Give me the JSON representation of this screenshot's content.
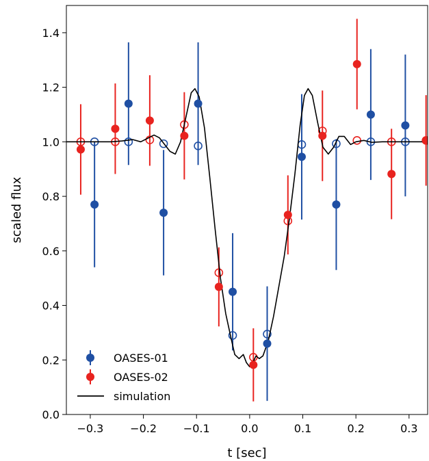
{
  "chart_data": {
    "type": "scatter",
    "xlabel": "t [sec]",
    "ylabel": "scaled flux",
    "xlim": [
      -0.345,
      0.335
    ],
    "ylim": [
      0.0,
      1.5
    ],
    "x_ticks": [
      -0.3,
      -0.2,
      -0.1,
      0.0,
      0.1,
      0.2,
      0.3
    ],
    "x_tick_labels": [
      "−0.3",
      "−0.2",
      "−0.1",
      "0.0",
      "0.1",
      "0.2",
      "0.3"
    ],
    "y_ticks": [
      0.0,
      0.2,
      0.4,
      0.6,
      0.8,
      1.0,
      1.2,
      1.4
    ],
    "y_tick_labels": [
      "0.0",
      "0.2",
      "0.4",
      "0.6",
      "0.8",
      "1.0",
      "1.2",
      "1.4"
    ],
    "grid": false,
    "legend_position": "bottom-left",
    "series": [
      {
        "name": "OASES-01",
        "color": "#1f4fa3",
        "marker": "filled circle with vertical error bar",
        "points": [
          {
            "x": -0.292,
            "y": 0.77,
            "err": 0.23
          },
          {
            "x": -0.228,
            "y": 1.14,
            "err": 0.225
          },
          {
            "x": -0.162,
            "y": 0.74,
            "err": 0.23
          },
          {
            "x": -0.097,
            "y": 1.14,
            "err": 0.225
          },
          {
            "x": -0.032,
            "y": 0.45,
            "err": 0.215
          },
          {
            "x": 0.033,
            "y": 0.26,
            "err": 0.21
          },
          {
            "x": 0.098,
            "y": 0.945,
            "err": 0.23
          },
          {
            "x": 0.163,
            "y": 0.77,
            "err": 0.24
          },
          {
            "x": 0.228,
            "y": 1.1,
            "err": 0.24
          },
          {
            "x": 0.293,
            "y": 1.06,
            "err": 0.26
          }
        ]
      },
      {
        "name": "OASES-02",
        "color": "#e8231f",
        "marker": "filled circle with vertical error bar",
        "points": [
          {
            "x": -0.318,
            "y": 0.972,
            "err": 0.166
          },
          {
            "x": -0.253,
            "y": 1.048,
            "err": 0.166
          },
          {
            "x": -0.188,
            "y": 1.078,
            "err": 0.166
          },
          {
            "x": -0.123,
            "y": 1.022,
            "err": 0.16
          },
          {
            "x": -0.058,
            "y": 0.468,
            "err": 0.145
          },
          {
            "x": 0.007,
            "y": 0.182,
            "err": 0.134
          },
          {
            "x": 0.072,
            "y": 0.732,
            "err": 0.145
          },
          {
            "x": 0.137,
            "y": 1.022,
            "err": 0.166
          },
          {
            "x": 0.202,
            "y": 1.285,
            "err": 0.166
          },
          {
            "x": 0.267,
            "y": 0.882,
            "err": 0.166
          },
          {
            "x": 0.332,
            "y": 1.005,
            "err": 0.166
          }
        ]
      },
      {
        "name": "simulation",
        "type": "line",
        "color": "#000000",
        "points": [
          [
            -0.345,
            1.0
          ],
          [
            -0.26,
            1.0
          ],
          [
            -0.24,
            1.003
          ],
          [
            -0.22,
            1.008
          ],
          [
            -0.205,
            1.0
          ],
          [
            -0.19,
            1.015
          ],
          [
            -0.18,
            1.025
          ],
          [
            -0.17,
            1.015
          ],
          [
            -0.16,
            0.99
          ],
          [
            -0.15,
            0.965
          ],
          [
            -0.14,
            0.955
          ],
          [
            -0.13,
            1.0
          ],
          [
            -0.12,
            1.09
          ],
          [
            -0.11,
            1.18
          ],
          [
            -0.103,
            1.195
          ],
          [
            -0.095,
            1.165
          ],
          [
            -0.085,
            1.05
          ],
          [
            -0.075,
            0.87
          ],
          [
            -0.065,
            0.68
          ],
          [
            -0.055,
            0.5
          ],
          [
            -0.045,
            0.37
          ],
          [
            -0.035,
            0.28
          ],
          [
            -0.028,
            0.22
          ],
          [
            -0.02,
            0.205
          ],
          [
            -0.012,
            0.22
          ],
          [
            -0.006,
            0.19
          ],
          [
            0.0,
            0.175
          ],
          [
            0.006,
            0.19
          ],
          [
            0.012,
            0.215
          ],
          [
            0.018,
            0.205
          ],
          [
            0.025,
            0.215
          ],
          [
            0.035,
            0.27
          ],
          [
            0.045,
            0.36
          ],
          [
            0.055,
            0.47
          ],
          [
            0.065,
            0.58
          ],
          [
            0.075,
            0.72
          ],
          [
            0.085,
            0.88
          ],
          [
            0.095,
            1.06
          ],
          [
            0.103,
            1.17
          ],
          [
            0.11,
            1.195
          ],
          [
            0.118,
            1.17
          ],
          [
            0.128,
            1.07
          ],
          [
            0.138,
            0.98
          ],
          [
            0.148,
            0.955
          ],
          [
            0.158,
            0.98
          ],
          [
            0.168,
            1.02
          ],
          [
            0.178,
            1.02
          ],
          [
            0.19,
            0.99
          ],
          [
            0.2,
            1.0
          ],
          [
            0.215,
            1.005
          ],
          [
            0.23,
            0.998
          ],
          [
            0.25,
            1.0
          ],
          [
            0.335,
            1.0
          ]
        ]
      }
    ],
    "open_markers": [
      {
        "series": "OASES-01",
        "color": "#1f4fa3",
        "points": [
          [
            -0.292,
            1.0
          ],
          [
            -0.228,
            1.0
          ],
          [
            -0.162,
            0.993
          ],
          [
            -0.097,
            0.985
          ],
          [
            -0.032,
            0.29
          ],
          [
            0.033,
            0.295
          ],
          [
            0.098,
            0.99
          ],
          [
            0.163,
            0.993
          ],
          [
            0.228,
            1.0
          ],
          [
            0.293,
            1.0
          ]
        ]
      },
      {
        "series": "OASES-02",
        "color": "#e8231f",
        "points": [
          [
            -0.318,
            1.0
          ],
          [
            -0.253,
            1.0
          ],
          [
            -0.188,
            1.007
          ],
          [
            -0.123,
            1.063
          ],
          [
            -0.058,
            0.52
          ],
          [
            0.007,
            0.21
          ],
          [
            0.072,
            0.71
          ],
          [
            0.137,
            1.04
          ],
          [
            0.202,
            1.005
          ],
          [
            0.267,
            1.0
          ],
          [
            0.332,
            1.005
          ]
        ]
      }
    ]
  }
}
